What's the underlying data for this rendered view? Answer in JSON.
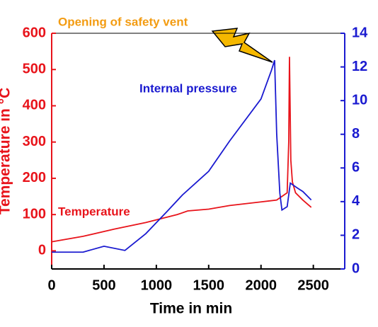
{
  "chart_data": {
    "type": "line",
    "xlabel": "Time in min",
    "ylabel": "Temperature in °C",
    "annotations": [
      "Opening of safety vent",
      "Internal pressure",
      "Temperature"
    ],
    "xlim": [
      0,
      2800
    ],
    "xticks": [
      0,
      500,
      1000,
      1500,
      2000,
      2500
    ],
    "ylim": [
      -50,
      600
    ],
    "yticks": [
      0,
      100,
      200,
      300,
      400,
      500,
      600
    ],
    "y2lim": [
      0,
      14
    ],
    "y2ticks": [
      0,
      2,
      4,
      6,
      8,
      10,
      12,
      14
    ],
    "series": [
      {
        "name": "Temperature",
        "color": "#e8141b",
        "x": [
          0,
          300,
          600,
          900,
          1200,
          1300,
          1500,
          1700,
          2000,
          2150,
          2250,
          2265,
          2272,
          2285,
          2300,
          2330,
          2400,
          2480
        ],
        "values": [
          25,
          40,
          60,
          78,
          100,
          110,
          115,
          125,
          135,
          140,
          160,
          300,
          535,
          250,
          190,
          160,
          140,
          120
        ]
      },
      {
        "name": "Internal pressure",
        "color": "#1a1ad0",
        "axis": "y2",
        "x": [
          0,
          300,
          500,
          700,
          900,
          1100,
          1250,
          1500,
          1700,
          2000,
          2100,
          2130,
          2150,
          2180,
          2200,
          2250,
          2280,
          2350,
          2400,
          2480
        ],
        "values": [
          1.0,
          1.0,
          1.35,
          1.1,
          2.1,
          3.4,
          4.4,
          5.8,
          7.6,
          10.1,
          11.8,
          12.4,
          8.0,
          4.5,
          3.5,
          3.7,
          5.1,
          4.8,
          4.6,
          4.1
        ]
      }
    ]
  }
}
